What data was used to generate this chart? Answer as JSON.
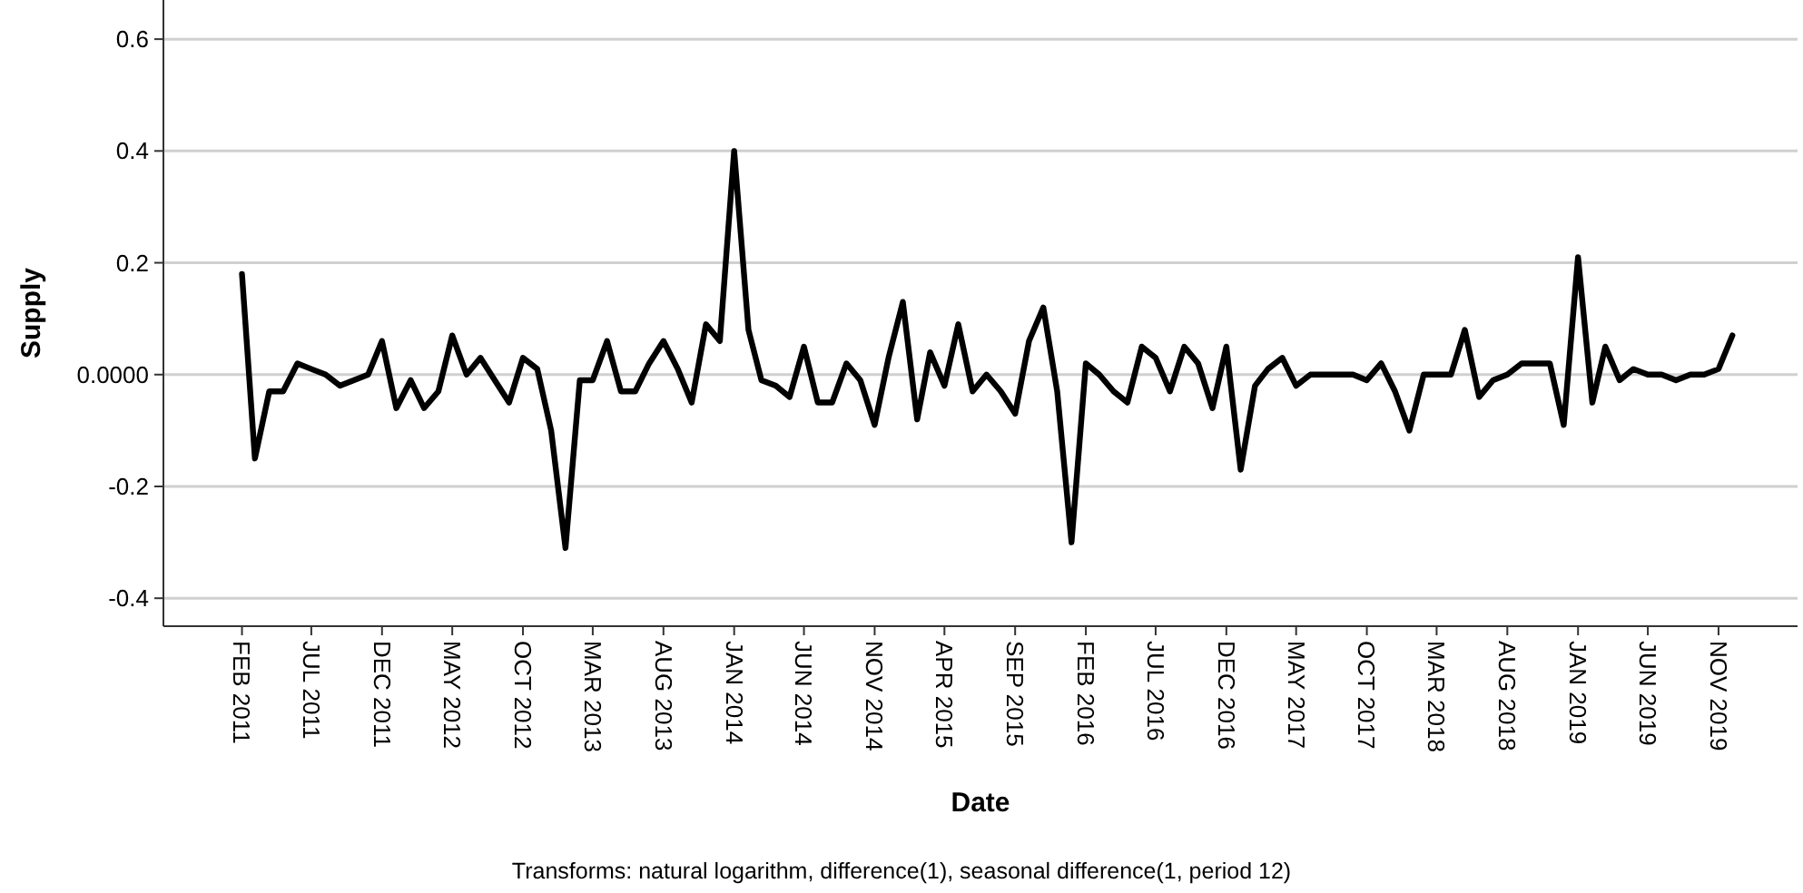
{
  "chart_data": {
    "type": "line",
    "xlabel": "Date",
    "ylabel": "Supply",
    "annotations": [
      "Transforms: natural logarithm, difference(1), seasonal difference(1, period 12)"
    ],
    "x": [
      "2011-02",
      "2011-03",
      "2011-04",
      "2011-05",
      "2011-06",
      "2011-07",
      "2011-08",
      "2011-09",
      "2011-10",
      "2011-11",
      "2011-12",
      "2012-01",
      "2012-02",
      "2012-03",
      "2012-04",
      "2012-05",
      "2012-06",
      "2012-07",
      "2012-08",
      "2012-09",
      "2012-10",
      "2012-11",
      "2012-12",
      "2013-01",
      "2013-02",
      "2013-03",
      "2013-04",
      "2013-05",
      "2013-06",
      "2013-07",
      "2013-08",
      "2013-09",
      "2013-10",
      "2013-11",
      "2013-12",
      "2014-01",
      "2014-02",
      "2014-03",
      "2014-04",
      "2014-05",
      "2014-06",
      "2014-07",
      "2014-08",
      "2014-09",
      "2014-10",
      "2014-11",
      "2014-12",
      "2015-01",
      "2015-02",
      "2015-03",
      "2015-04",
      "2015-05",
      "2015-06",
      "2015-07",
      "2015-08",
      "2015-09",
      "2015-10",
      "2015-11",
      "2015-12",
      "2016-01",
      "2016-02",
      "2016-03",
      "2016-04",
      "2016-05",
      "2016-06",
      "2016-07",
      "2016-08",
      "2016-09",
      "2016-10",
      "2016-11",
      "2016-12",
      "2017-01",
      "2017-02",
      "2017-03",
      "2017-04",
      "2017-05",
      "2017-06",
      "2017-07",
      "2017-08",
      "2017-09",
      "2017-10",
      "2017-11",
      "2017-12",
      "2018-01",
      "2018-02",
      "2018-03",
      "2018-04",
      "2018-05",
      "2018-06",
      "2018-07",
      "2018-08",
      "2018-09",
      "2018-10",
      "2018-11",
      "2018-12",
      "2019-01",
      "2019-02",
      "2019-03",
      "2019-04",
      "2019-05",
      "2019-06",
      "2019-07",
      "2019-08",
      "2019-09",
      "2019-10",
      "2019-11",
      "2019-12"
    ],
    "series": [
      {
        "color": "#000000",
        "values": [
          0.18,
          -0.15,
          -0.03,
          -0.03,
          0.02,
          0.01,
          0,
          -0.02,
          -0.01,
          0,
          0.06,
          -0.06,
          -0.01,
          -0.06,
          -0.03,
          0.07,
          0,
          0.03,
          -0.01,
          -0.05,
          0.03,
          0.01,
          -0.1,
          -0.31,
          -0.01,
          -0.01,
          0.06,
          -0.03,
          -0.03,
          0.02,
          0.06,
          0.01,
          -0.05,
          0.09,
          0.06,
          0.4,
          0.08,
          -0.01,
          -0.02,
          -0.04,
          0.05,
          -0.05,
          -0.05,
          0.02,
          -0.01,
          -0.09,
          0.03,
          0.13,
          -0.08,
          0.04,
          -0.02,
          0.09,
          -0.03,
          0,
          -0.03,
          -0.07,
          0.06,
          0.12,
          -0.03,
          -0.3,
          0.02,
          0,
          -0.03,
          -0.05,
          0.05,
          0.03,
          -0.03,
          0.05,
          0.02,
          -0.06,
          0.05,
          -0.17,
          -0.02,
          0.01,
          0.03,
          -0.02,
          0,
          0,
          0,
          0,
          -0.01,
          0.02,
          -0.03,
          -0.1,
          0,
          0,
          0,
          0.08,
          -0.04,
          -0.01,
          0,
          0.02,
          0.02,
          0.02,
          -0.09,
          0.21,
          -0.05,
          0.05,
          -0.01,
          0.01,
          0,
          0,
          -0.01,
          0,
          0,
          0.01,
          0.07
        ]
      }
    ],
    "xlim": [
      "2010-08-15",
      "2020-04-20"
    ],
    "xticks": [
      {
        "value": "2011-02",
        "label": "FEB 2011"
      },
      {
        "value": "2011-07",
        "label": "JUL 2011"
      },
      {
        "value": "2011-12",
        "label": "DEC 2011"
      },
      {
        "value": "2012-05",
        "label": "MAY 2012"
      },
      {
        "value": "2012-10",
        "label": "OCT 2012"
      },
      {
        "value": "2013-03",
        "label": "MAR 2013"
      },
      {
        "value": "2013-08",
        "label": "AUG 2013"
      },
      {
        "value": "2014-01",
        "label": "JAN 2014"
      },
      {
        "value": "2014-06",
        "label": "JUN 2014"
      },
      {
        "value": "2014-11",
        "label": "NOV 2014"
      },
      {
        "value": "2015-04",
        "label": "APR 2015"
      },
      {
        "value": "2015-09",
        "label": "SEP 2015"
      },
      {
        "value": "2016-02",
        "label": "FEB 2016"
      },
      {
        "value": "2016-07",
        "label": "JUL 2016"
      },
      {
        "value": "2016-12",
        "label": "DEC 2016"
      },
      {
        "value": "2017-05",
        "label": "MAY 2017"
      },
      {
        "value": "2017-10",
        "label": "OCT 2017"
      },
      {
        "value": "2018-03",
        "label": "MAR 2018"
      },
      {
        "value": "2018-08",
        "label": "AUG 2018"
      },
      {
        "value": "2019-01",
        "label": "JAN 2019"
      },
      {
        "value": "2019-06",
        "label": "JUN 2019"
      },
      {
        "value": "2019-11",
        "label": "NOV 2019"
      }
    ],
    "ylim": [
      -0.45,
      0.67
    ],
    "yticks": [
      -0.4,
      -0.2,
      {
        "value": 0,
        "label": "0.0000"
      },
      0.2,
      0.4,
      0.6
    ],
    "grid": "y",
    "marker": "none",
    "line_style": "solid"
  }
}
